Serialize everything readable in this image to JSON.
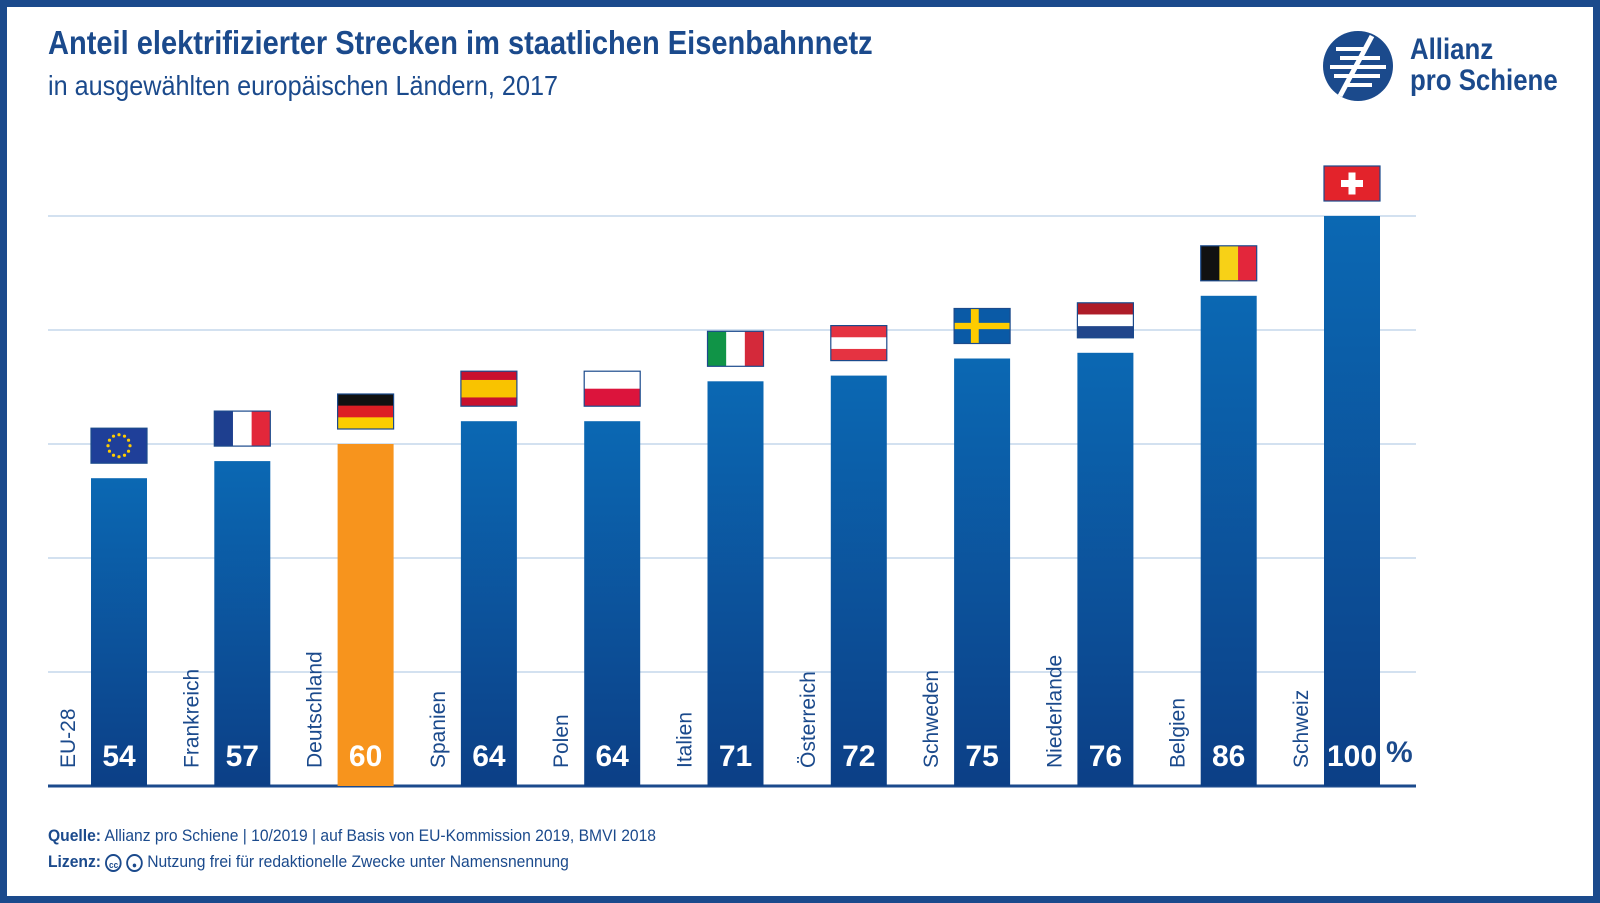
{
  "header": {
    "title": "Anteil elektrifizierter Strecken im staatlichen Eisenbahnnetz",
    "subtitle": "in ausgewählten europäischen Ländern, 2017"
  },
  "logo": {
    "line1": "Allianz",
    "line2": "pro Schiene"
  },
  "footer": {
    "source_label": "Quelle:",
    "source_text": "Allianz pro Schiene | 10/2019 | auf Basis von EU-Kommission 2019, BMVI 2018",
    "license_label": "Lizenz:",
    "license_text": "Nutzung frei für redaktionelle Zwecke unter Namensnennung",
    "cc_icon": "cc",
    "by_icon": "person-icon"
  },
  "chart_data": {
    "type": "bar",
    "categories": [
      "EU-28",
      "Frankreich",
      "Deutschland",
      "Spanien",
      "Polen",
      "Italien",
      "Österreich",
      "Schweden",
      "Niederlande",
      "Belgien",
      "Schweiz"
    ],
    "values": [
      54,
      57,
      60,
      64,
      64,
      71,
      72,
      75,
      76,
      86,
      100
    ],
    "value_labels": [
      "54",
      "57",
      "60",
      "64",
      "64",
      "71",
      "72",
      "75",
      "76",
      "86",
      "100"
    ],
    "unit": "%",
    "flags": [
      "flag-eu-icon",
      "flag-france-icon",
      "flag-germany-icon",
      "flag-spain-icon",
      "flag-poland-icon",
      "flag-italy-icon",
      "flag-austria-icon",
      "flag-sweden-icon",
      "flag-netherlands-icon",
      "flag-belgium-icon",
      "flag-switzerland-icon"
    ],
    "highlight_category": "Deutschland",
    "colors": {
      "bar": "#0a5aa6",
      "bar_dark": "#0c3f86",
      "highlight": "#f7941d",
      "text": "#1b4a8c",
      "grid": "#b9cfe6"
    },
    "gridlines": [
      0,
      20,
      40,
      60,
      80,
      100
    ],
    "ylim": [
      0,
      100
    ],
    "grid": true
  }
}
